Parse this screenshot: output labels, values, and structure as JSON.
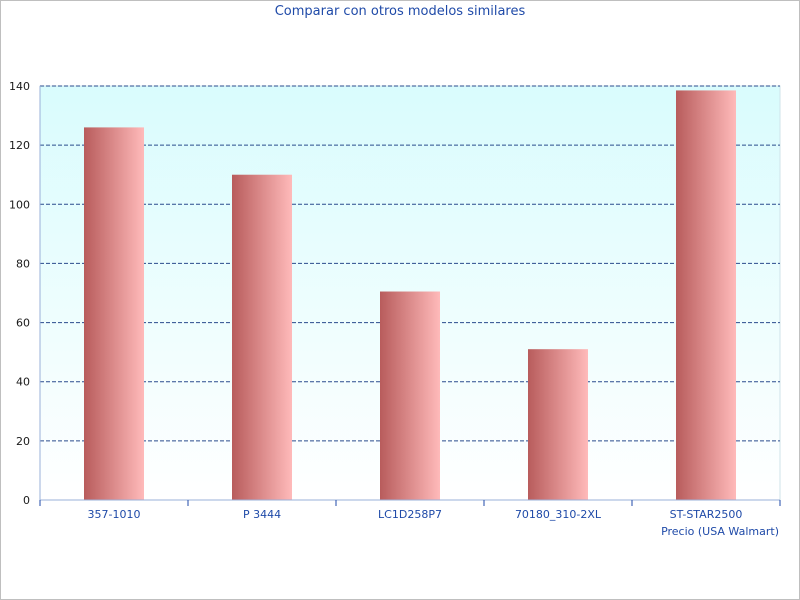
{
  "chart_data": {
    "type": "bar",
    "title": "Comparar con otros modelos similares",
    "xlabel": "Precio (USA Walmart)",
    "ylabel": "",
    "categories": [
      "357-1010",
      "P 3444",
      "LC1D258P7",
      "70180_310-2XL",
      "ST-STAR2500"
    ],
    "values": [
      126,
      110,
      70.5,
      51,
      138.5
    ],
    "ylim": [
      0,
      140
    ],
    "yticks": [
      0,
      20,
      40,
      60,
      80,
      100,
      120,
      140
    ],
    "grid": true,
    "legend": "none"
  },
  "colors": {
    "bar_dark": "#b85c5c",
    "bar_light": "#ffbaba",
    "plot_bg_top": "#d9fcfd",
    "plot_bg_bottom": "#ffffff",
    "grid": "#2a4b8d",
    "axis": "#9ab0d8",
    "tick_mark": "#1f4aa8"
  }
}
